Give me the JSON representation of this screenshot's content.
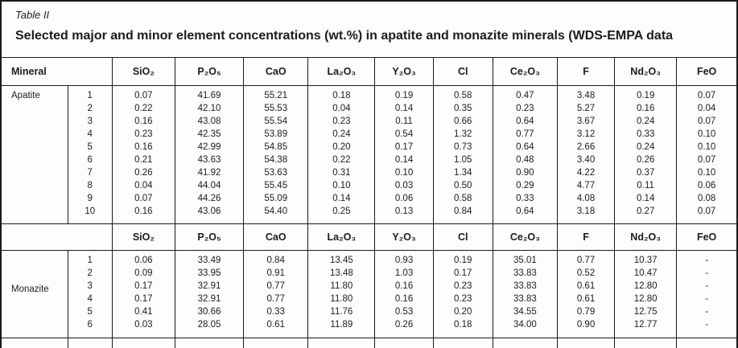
{
  "title": {
    "label": "Table II",
    "heading": "Selected major and minor element concentrations (wt.%) in apatite and monazite minerals (WDS-EMPA data"
  },
  "columns": [
    "Mineral",
    "SiO₂",
    "P₂O₅",
    "CaO",
    "La₂O₃",
    "Y₂O₃",
    "Cl",
    "Ce₂O₃",
    "F",
    "Nd₂O₃",
    "FeO"
  ],
  "sections": [
    {
      "mineral": "Apatite",
      "rows": [
        {
          "sample": "1",
          "values": [
            "0.07",
            "41.69",
            "55.21",
            "0.18",
            "0.19",
            "0.58",
            "0.47",
            "3.48",
            "0.19",
            "0.07"
          ]
        },
        {
          "sample": "2",
          "values": [
            "0.22",
            "42.10",
            "55.53",
            "0.04",
            "0.14",
            "0.35",
            "0.23",
            "5.27",
            "0.16",
            "0.04"
          ]
        },
        {
          "sample": "3",
          "values": [
            "0.16",
            "43.08",
            "55.54",
            "0.23",
            "0.11",
            "0.66",
            "0.64",
            "3.67",
            "0.24",
            "0.07"
          ]
        },
        {
          "sample": "4",
          "values": [
            "0.23",
            "42.35",
            "53.89",
            "0.24",
            "0.54",
            "1.32",
            "0.77",
            "3.12",
            "0.33",
            "0.10"
          ]
        },
        {
          "sample": "5",
          "values": [
            "0.16",
            "42.99",
            "54.85",
            "0.20",
            "0.17",
            "0.73",
            "0.64",
            "2.66",
            "0.24",
            "0.10"
          ]
        },
        {
          "sample": "6",
          "values": [
            "0.21",
            "43.63",
            "54.38",
            "0.22",
            "0.14",
            "1.05",
            "0.48",
            "3.40",
            "0.26",
            "0.07"
          ]
        },
        {
          "sample": "7",
          "values": [
            "0.26",
            "41.92",
            "53.63",
            "0.31",
            "0.10",
            "1.34",
            "0.90",
            "4.22",
            "0.37",
            "0.10"
          ]
        },
        {
          "sample": "8",
          "values": [
            "0.04",
            "44.04",
            "55.45",
            "0.10",
            "0.03",
            "0.50",
            "0.29",
            "4.77",
            "0.11",
            "0.06"
          ]
        },
        {
          "sample": "9",
          "values": [
            "0.07",
            "44.26",
            "55.09",
            "0.14",
            "0.06",
            "0.58",
            "0.33",
            "4.08",
            "0.14",
            "0.08"
          ]
        },
        {
          "sample": "10",
          "values": [
            "0.16",
            "43.06",
            "54.40",
            "0.25",
            "0.13",
            "0.84",
            "0.64",
            "3.18",
            "0.27",
            "0.07"
          ]
        }
      ]
    },
    {
      "mineral": "Monazite",
      "rows": [
        {
          "sample": "1",
          "values": [
            "0.06",
            "33.49",
            "0.84",
            "13.45",
            "0.93",
            "0.19",
            "35.01",
            "0.77",
            "10.37",
            "-"
          ]
        },
        {
          "sample": "2",
          "values": [
            "0.09",
            "33.95",
            "0.91",
            "13.48",
            "1.03",
            "0.17",
            "33.83",
            "0.52",
            "10.47",
            "-"
          ]
        },
        {
          "sample": "3",
          "values": [
            "0.17",
            "32.91",
            "0.77",
            "11.80",
            "0.16",
            "0.23",
            "33.83",
            "0.61",
            "12.80",
            "-"
          ]
        },
        {
          "sample": "4",
          "values": [
            "0.17",
            "32.91",
            "0.77",
            "11.80",
            "0.16",
            "0.23",
            "33.83",
            "0.61",
            "12.80",
            "-"
          ]
        },
        {
          "sample": "5",
          "values": [
            "0.41",
            "30.66",
            "0.33",
            "11.76",
            "0.53",
            "0.20",
            "34.55",
            "0.79",
            "12.75",
            "-"
          ]
        },
        {
          "sample": "6",
          "values": [
            "0.03",
            "28.05",
            "0.61",
            "11.89",
            "0.26",
            "0.18",
            "34.00",
            "0.90",
            "12.77",
            "-"
          ]
        }
      ]
    }
  ],
  "colors": {
    "ink": "#1c1c1c",
    "paper": "#fdfdfd",
    "rule": "#1a1a1a"
  }
}
